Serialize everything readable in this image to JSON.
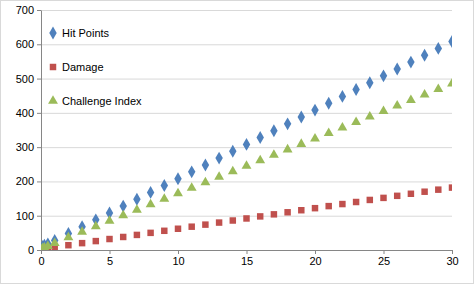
{
  "chart_data": {
    "type": "scatter",
    "x": [
      0,
      0.125,
      0.25,
      0.5,
      1,
      2,
      3,
      4,
      5,
      6,
      7,
      8,
      9,
      10,
      11,
      12,
      13,
      14,
      15,
      16,
      17,
      18,
      19,
      20,
      21,
      22,
      23,
      24,
      25,
      26,
      27,
      28,
      29,
      30
    ],
    "series": [
      {
        "name": "Hit Points",
        "color": "#4f81bd",
        "marker": "diamond",
        "values": [
          4,
          10,
          14,
          18,
          28,
          48,
          68,
          88,
          108,
          128,
          148,
          168,
          188,
          208,
          228,
          248,
          268,
          288,
          308,
          328,
          348,
          368,
          388,
          408,
          428,
          448,
          468,
          488,
          508,
          528,
          548,
          568,
          588,
          608
        ]
      },
      {
        "name": "Damage",
        "color": "#c0504d",
        "marker": "square",
        "values": [
          1,
          2,
          3,
          4,
          8,
          14,
          20,
          26,
          32,
          38,
          44,
          50,
          56,
          62,
          68,
          74,
          80,
          86,
          92,
          98,
          104,
          110,
          116,
          122,
          128,
          134,
          140,
          146,
          152,
          158,
          164,
          170,
          176,
          182
        ]
      },
      {
        "name": "Challenge Index",
        "color": "#9bbb59",
        "marker": "triangle",
        "values": [
          2,
          5,
          7,
          11,
          20,
          37,
          53,
          69,
          85,
          101,
          117,
          133,
          149,
          165,
          181,
          197,
          213,
          229,
          245,
          261,
          277,
          293,
          309,
          325,
          341,
          357,
          373,
          389,
          405,
          421,
          437,
          453,
          469,
          485
        ]
      }
    ],
    "xlim": [
      0,
      30
    ],
    "xticks": [
      0,
      5,
      10,
      15,
      20,
      25,
      30
    ],
    "ylim": [
      0,
      700
    ],
    "yticks": [
      0,
      100,
      200,
      300,
      400,
      500,
      600,
      700
    ],
    "grid": true,
    "legend": "top-left"
  }
}
